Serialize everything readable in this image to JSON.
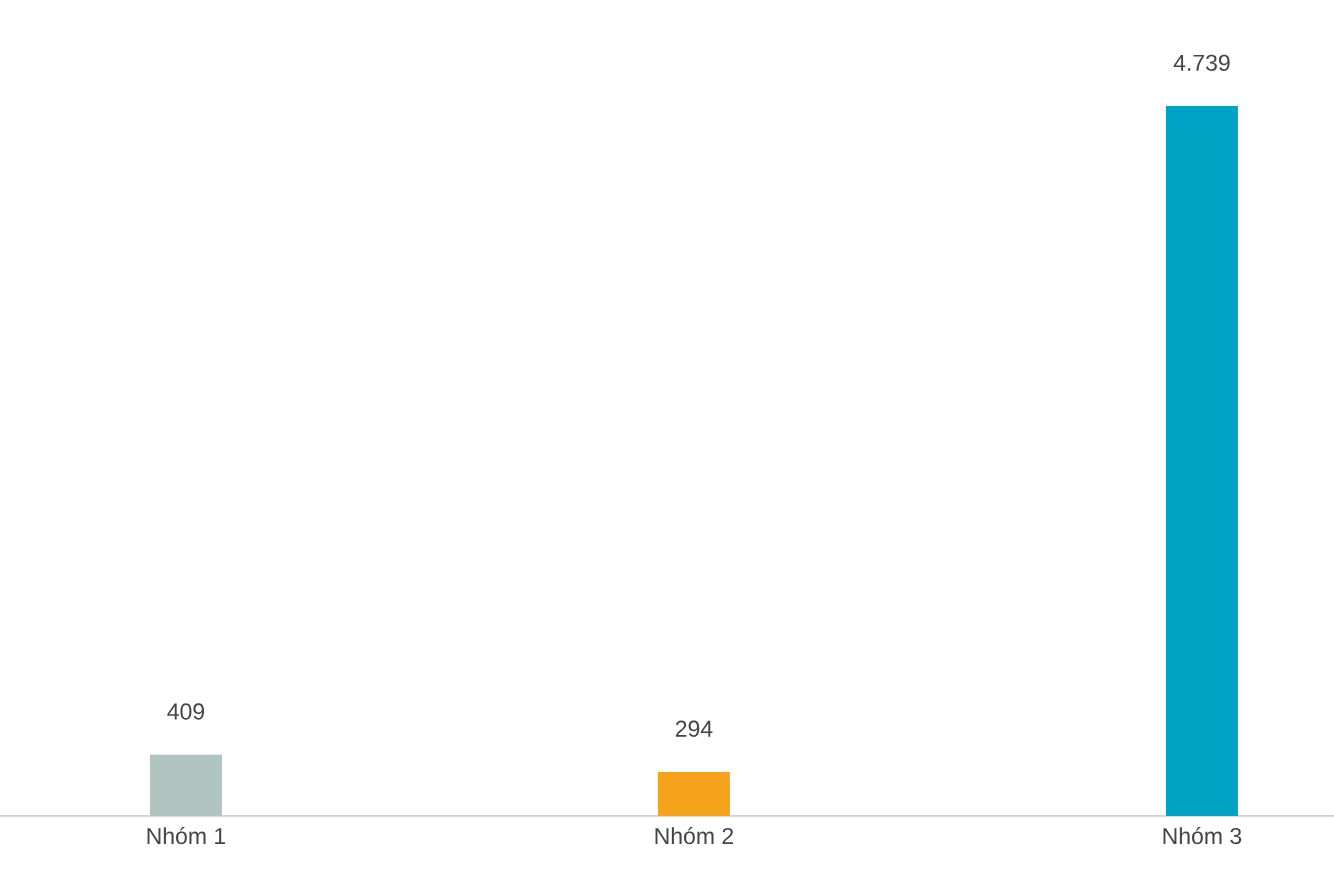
{
  "chart_data": {
    "type": "bar",
    "categories": [
      "Nhóm 1",
      "Nhóm 2",
      "Nhóm 3"
    ],
    "values": [
      409,
      294,
      4739
    ],
    "colors": [
      "#b0c4c0",
      "#f5a31a",
      "#00a3c4"
    ],
    "value_labels": [
      "409",
      "294",
      "4.739"
    ]
  }
}
